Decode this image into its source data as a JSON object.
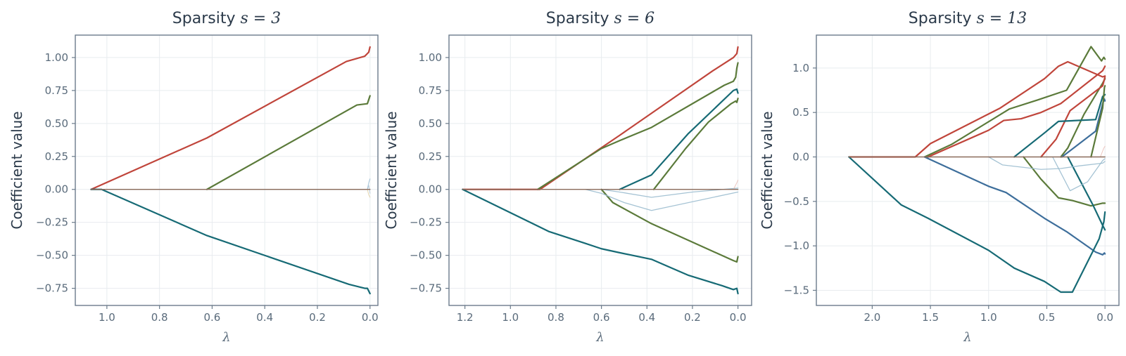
{
  "chart_data": [
    {
      "type": "line",
      "title": "Sparsity",
      "title_math": "s = 3",
      "xlabel": "λ",
      "ylabel": "Coefficient value",
      "xlim": [
        1.12,
        -0.03
      ],
      "ylim": [
        -0.88,
        1.17
      ],
      "x_ticks": [
        1.0,
        0.8,
        0.6,
        0.4,
        0.2,
        0.0
      ],
      "x_tick_labels": [
        "1.0",
        "0.8",
        "0.6",
        "0.4",
        "0.2",
        "0.0"
      ],
      "y_ticks": [
        1.0,
        0.75,
        0.5,
        0.25,
        0.0,
        -0.25,
        -0.5,
        -0.75
      ],
      "y_tick_labels": [
        "1.00",
        "0.75",
        "0.50",
        "0.25",
        "0.00",
        "−0.25",
        "−0.50",
        "−0.75"
      ],
      "grid": true,
      "series": [
        {
          "color": "#c0453b",
          "width": 2.2,
          "opacity": 1,
          "x": [
            1.06,
            0.62,
            0.09,
            0.02,
            0.005,
            0.0
          ],
          "y": [
            0.0,
            0.39,
            0.97,
            1.01,
            1.04,
            1.08
          ]
        },
        {
          "color": "#5b7a3a",
          "width": 2.2,
          "opacity": 1,
          "x": [
            0.62,
            0.05,
            0.01,
            0.005,
            0.0
          ],
          "y": [
            0.0,
            0.64,
            0.65,
            0.68,
            0.71
          ]
        },
        {
          "color": "#166a75",
          "width": 2.2,
          "opacity": 1,
          "x": [
            1.06,
            1.02,
            0.62,
            0.08,
            0.02,
            0.01,
            0.005,
            0.0
          ],
          "y": [
            0.0,
            0.0,
            -0.35,
            -0.72,
            -0.75,
            -0.75,
            -0.77,
            -0.79
          ]
        },
        {
          "color": "#6b9ec0",
          "width": 1.0,
          "opacity": 0.6,
          "x": [
            1.06,
            0.01,
            0.005,
            0.0
          ],
          "y": [
            0.0,
            0.0,
            0.05,
            0.08
          ]
        },
        {
          "color": "#d8c38a",
          "width": 1.0,
          "opacity": 0.7,
          "x": [
            1.06,
            0.01,
            0.005,
            0.0
          ],
          "y": [
            0.0,
            0.0,
            -0.04,
            -0.06
          ]
        },
        {
          "color": "#9db8cc",
          "width": 1.0,
          "opacity": 0.7,
          "x": [
            1.06,
            0.01,
            0.005,
            0.0
          ],
          "y": [
            0.0,
            0.0,
            0.03,
            -0.03
          ]
        },
        {
          "color": "#8a6a5a",
          "width": 1.4,
          "opacity": 1,
          "x": [
            1.06,
            0.0
          ],
          "y": [
            0.0,
            0.0
          ]
        }
      ]
    },
    {
      "type": "line",
      "title": "Sparsity",
      "title_math": "s = 6",
      "xlabel": "λ",
      "ylabel": "Coefficient value",
      "xlim": [
        1.27,
        -0.06
      ],
      "ylim": [
        -0.88,
        1.17
      ],
      "x_ticks": [
        1.2,
        1.0,
        0.8,
        0.6,
        0.4,
        0.2,
        0.0
      ],
      "x_tick_labels": [
        "1.2",
        "1.0",
        "0.8",
        "0.6",
        "0.4",
        "0.2",
        "0.0"
      ],
      "y_ticks": [
        1.0,
        0.75,
        0.5,
        0.25,
        0.0,
        -0.25,
        -0.5,
        -0.75
      ],
      "y_tick_labels": [
        "1.00",
        "0.75",
        "0.50",
        "0.25",
        "0.00",
        "−0.25",
        "−0.50",
        "−0.75"
      ],
      "grid": true,
      "series": [
        {
          "color": "#c0453b",
          "width": 2.2,
          "opacity": 1,
          "x": [
            1.21,
            0.87,
            0.52,
            0.11,
            0.02,
            0.005,
            0.0
          ],
          "y": [
            0.0,
            0.0,
            0.41,
            0.9,
            1.0,
            1.03,
            1.08
          ]
        },
        {
          "color": "#5b7a3a",
          "width": 2.2,
          "opacity": 1,
          "x": [
            0.88,
            0.7,
            0.6,
            0.52,
            0.38,
            0.06,
            0.02,
            0.01,
            0.005,
            0.0
          ],
          "y": [
            0.0,
            0.2,
            0.31,
            0.37,
            0.47,
            0.79,
            0.82,
            0.85,
            0.92,
            0.96
          ]
        },
        {
          "color": "#166a75",
          "width": 2.2,
          "opacity": 1,
          "x": [
            0.52,
            0.38,
            0.22,
            0.02,
            0.005,
            0.0
          ],
          "y": [
            0.0,
            0.11,
            0.42,
            0.75,
            0.76,
            0.73
          ]
        },
        {
          "color": "#5b7a3a",
          "width": 2.2,
          "opacity": 1,
          "x": [
            0.37,
            0.23,
            0.13,
            0.03,
            0.01,
            0.005,
            0.0
          ],
          "y": [
            0.0,
            0.31,
            0.51,
            0.65,
            0.67,
            0.66,
            0.69
          ]
        },
        {
          "color": "#5b7a3a",
          "width": 2.2,
          "opacity": 1,
          "x": [
            0.6,
            0.55,
            0.38,
            0.02,
            0.005,
            0.0
          ],
          "y": [
            0.0,
            -0.1,
            -0.26,
            -0.54,
            -0.55,
            -0.51
          ]
        },
        {
          "color": "#166a75",
          "width": 2.2,
          "opacity": 1,
          "x": [
            1.21,
            0.83,
            0.67,
            0.6,
            0.52,
            0.38,
            0.22,
            0.07,
            0.02,
            0.005,
            0.0
          ],
          "y": [
            0.0,
            -0.32,
            -0.41,
            -0.45,
            -0.48,
            -0.53,
            -0.65,
            -0.73,
            -0.76,
            -0.75,
            -0.79
          ]
        },
        {
          "color": "#9bbccf",
          "width": 1.3,
          "opacity": 0.9,
          "x": [
            0.67,
            0.6,
            0.5,
            0.38,
            0.0
          ],
          "y": [
            0.0,
            -0.03,
            -0.1,
            -0.16,
            -0.02
          ]
        },
        {
          "color": "#9bbccf",
          "width": 1.3,
          "opacity": 0.9,
          "x": [
            0.6,
            0.52,
            0.38,
            0.2,
            0.0
          ],
          "y": [
            0.0,
            -0.02,
            -0.06,
            -0.02,
            0.01
          ]
        },
        {
          "color": "#e8b8b0",
          "width": 1.0,
          "opacity": 0.8,
          "x": [
            0.02,
            0.005,
            0.0
          ],
          "y": [
            0.0,
            0.05,
            0.07
          ]
        },
        {
          "color": "#8a6a5a",
          "width": 1.4,
          "opacity": 1,
          "x": [
            1.21,
            0.0
          ],
          "y": [
            0.0,
            0.0
          ]
        }
      ]
    },
    {
      "type": "line",
      "title": "Sparsity",
      "title_math": "s = 13",
      "xlabel": "λ",
      "ylabel": "Coefficient value",
      "xlim": [
        2.48,
        -0.12
      ],
      "ylim": [
        -1.67,
        1.37
      ],
      "x_ticks": [
        2.0,
        1.5,
        1.0,
        0.5,
        0.0
      ],
      "x_tick_labels": [
        "2.0",
        "1.5",
        "1.0",
        "0.5",
        "0.0"
      ],
      "y_ticks": [
        1.0,
        0.5,
        0.0,
        -0.5,
        -1.0,
        -1.5
      ],
      "y_tick_labels": [
        "1.0",
        "0.5",
        "0.0",
        "−0.5",
        "−1.0",
        "−1.5"
      ],
      "grid": true,
      "series": [
        {
          "color": "#c0453b",
          "width": 2.2,
          "opacity": 1,
          "x": [
            2.2,
            1.63,
            1.5,
            0.9,
            0.52,
            0.4,
            0.32,
            0.02,
            0.0
          ],
          "y": [
            0.0,
            0.0,
            0.15,
            0.55,
            0.88,
            1.02,
            1.07,
            0.9,
            0.91
          ]
        },
        {
          "color": "#5b7a3a",
          "width": 2.2,
          "opacity": 1,
          "x": [
            1.55,
            1.32,
            0.82,
            0.58,
            0.33,
            0.12,
            0.03,
            0.01,
            0.0
          ],
          "y": [
            0.0,
            0.14,
            0.54,
            0.64,
            0.75,
            1.24,
            1.08,
            1.12,
            1.1
          ]
        },
        {
          "color": "#c0453b",
          "width": 2.2,
          "opacity": 1,
          "x": [
            1.52,
            1.0,
            0.87,
            0.72,
            0.55,
            0.38,
            0.02,
            0.0
          ],
          "y": [
            0.0,
            0.3,
            0.41,
            0.43,
            0.5,
            0.6,
            0.97,
            1.02
          ]
        },
        {
          "color": "#5b7a3a",
          "width": 2.2,
          "opacity": 1,
          "x": [
            0.38,
            0.32,
            0.18,
            0.02,
            0.0
          ],
          "y": [
            0.0,
            0.1,
            0.48,
            0.83,
            0.88
          ]
        },
        {
          "color": "#c0453b",
          "width": 2.2,
          "opacity": 1,
          "x": [
            0.55,
            0.42,
            0.3,
            0.02,
            0.0
          ],
          "y": [
            0.0,
            0.2,
            0.52,
            0.8,
            0.9
          ]
        },
        {
          "color": "#166a75",
          "width": 2.2,
          "opacity": 1,
          "x": [
            0.78,
            0.52,
            0.4,
            0.08,
            0.02,
            0.0
          ],
          "y": [
            0.0,
            0.27,
            0.4,
            0.42,
            0.68,
            0.7
          ]
        },
        {
          "color": "#3d6e9b",
          "width": 2.2,
          "opacity": 1,
          "x": [
            0.37,
            0.08,
            0.02,
            0.005,
            0.0
          ],
          "y": [
            0.0,
            0.29,
            0.6,
            0.65,
            0.63
          ]
        },
        {
          "color": "#5b7a3a",
          "width": 2.2,
          "opacity": 1,
          "x": [
            0.12,
            0.02,
            0.005,
            0.0
          ],
          "y": [
            0.0,
            0.55,
            0.78,
            0.8
          ]
        },
        {
          "color": "#5b7a3a",
          "width": 2.2,
          "opacity": 1,
          "x": [
            0.7,
            0.55,
            0.4,
            0.28,
            0.12,
            0.02,
            0.0
          ],
          "y": [
            0.0,
            -0.25,
            -0.46,
            -0.49,
            -0.55,
            -0.52,
            -0.52
          ]
        },
        {
          "color": "#166a75",
          "width": 2.2,
          "opacity": 1,
          "x": [
            0.32,
            0.2,
            0.1,
            0.02,
            0.0
          ],
          "y": [
            0.0,
            -0.3,
            -0.55,
            -0.77,
            -0.82
          ]
        },
        {
          "color": "#3d6e9b",
          "width": 2.2,
          "opacity": 1,
          "x": [
            1.55,
            1.0,
            0.85,
            0.52,
            0.33,
            0.08,
            0.02,
            0.005,
            0.0
          ],
          "y": [
            0.0,
            -0.33,
            -0.4,
            -0.69,
            -0.84,
            -1.07,
            -1.1,
            -1.08,
            -1.09
          ]
        },
        {
          "color": "#166a75",
          "width": 2.2,
          "opacity": 1,
          "x": [
            2.2,
            1.75,
            1.52,
            1.0,
            0.78,
            0.52,
            0.38,
            0.28,
            0.05,
            0.01,
            0.0
          ],
          "y": [
            0.0,
            -0.54,
            -0.69,
            -1.05,
            -1.25,
            -1.4,
            -1.52,
            -1.52,
            -0.92,
            -0.73,
            -0.62
          ]
        },
        {
          "color": "#9bbccf",
          "width": 1.3,
          "opacity": 0.9,
          "x": [
            1.0,
            0.88,
            0.55,
            0.38,
            0.22,
            0.02,
            0.0
          ],
          "y": [
            0.0,
            -0.09,
            -0.14,
            -0.13,
            -0.1,
            -0.07,
            -0.05
          ]
        },
        {
          "color": "#9bbccf",
          "width": 1.3,
          "opacity": 0.9,
          "x": [
            0.45,
            0.3,
            0.15,
            0.02,
            0.0
          ],
          "y": [
            0.0,
            -0.38,
            -0.28,
            -0.04,
            -0.02
          ]
        },
        {
          "color": "#e8b8b0",
          "width": 1.0,
          "opacity": 0.8,
          "x": [
            0.04,
            0.01,
            0.0
          ],
          "y": [
            0.0,
            0.1,
            0.12
          ]
        },
        {
          "color": "#8a6a5a",
          "width": 1.4,
          "opacity": 1,
          "x": [
            2.2,
            0.0
          ],
          "y": [
            0.0,
            0.0
          ]
        }
      ]
    }
  ]
}
